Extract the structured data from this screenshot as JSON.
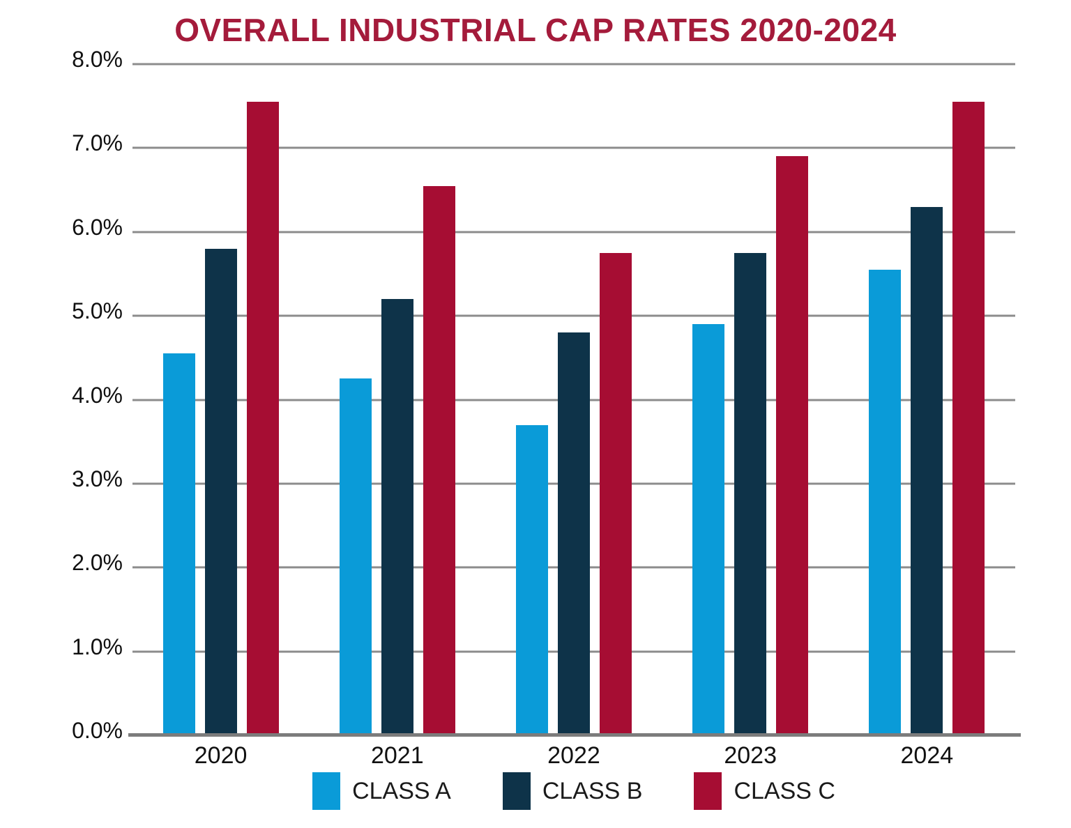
{
  "title": "OVERALL INDUSTRIAL CAP RATES 2020-2024",
  "colors": {
    "class_a": "#0A9BD8",
    "class_b": "#0E3349",
    "class_c": "#A60D33",
    "title": "#A41B3B",
    "gridline": "#8C8C8C",
    "axis_line": "#7C7C7C",
    "tick_text": "#111111"
  },
  "chart_data": {
    "type": "bar",
    "title": "OVERALL INDUSTRIAL CAP RATES 2020-2024",
    "categories": [
      "2020",
      "2021",
      "2022",
      "2023",
      "2024"
    ],
    "series": [
      {
        "name": "CLASS A",
        "color_key": "class_a",
        "values": [
          4.55,
          4.25,
          3.7,
          4.9,
          5.55
        ]
      },
      {
        "name": "CLASS B",
        "color_key": "class_b",
        "values": [
          5.8,
          5.2,
          4.8,
          5.75,
          6.3
        ]
      },
      {
        "name": "CLASS C",
        "color_key": "class_c",
        "values": [
          7.55,
          6.55,
          5.75,
          6.9,
          7.55
        ]
      }
    ],
    "xlabel": "",
    "ylabel": "",
    "ylim": [
      0,
      8
    ],
    "y_tick_step": 1.0,
    "y_ticks": [
      "8.0%",
      "7.0%",
      "6.0%",
      "5.0%",
      "4.0%",
      "3.0%",
      "2.0%",
      "1.0%",
      "0.0%"
    ],
    "grid": true,
    "legend_position": "bottom-center"
  }
}
